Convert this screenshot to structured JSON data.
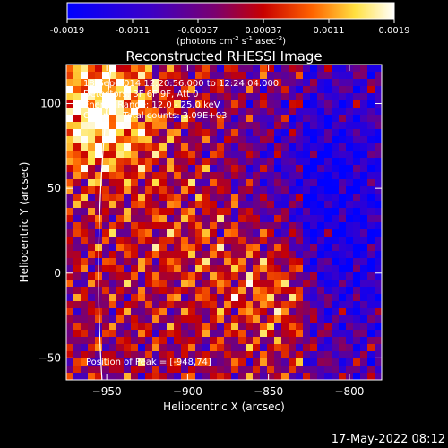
{
  "colorbar": {
    "ticks": [
      "-0.0019",
      "-0.0011",
      "-0.00037",
      "0.00037",
      "0.0011",
      "0.0019"
    ],
    "unit_parts": [
      "(photons cm",
      "-2",
      " s",
      "-1",
      " asec",
      "-2",
      ")"
    ],
    "colormap": "blue-purple-red-yellow-white"
  },
  "chart_data": {
    "type": "heatmap",
    "title": "Reconstructed RHESSI Image",
    "xlabel": "Heliocentric X (arcsec)",
    "ylabel": "Heliocentric Y (arcsec)",
    "xlim": [
      -975,
      -780
    ],
    "ylim": [
      -63,
      123
    ],
    "x_ticks": [
      -950,
      -900,
      -850,
      -800
    ],
    "y_ticks": [
      -50,
      0,
      50,
      100
    ],
    "x_tick_labels": [
      "−950",
      "−900",
      "−850",
      "−800"
    ],
    "y_tick_labels": [
      "−50",
      "0",
      "50",
      "100"
    ],
    "annotations": [
      "18-Sep-2014 12:20:56.000 to 12:24:04.000",
      "Detectors: 3F 6F 9F, Att 0",
      "Energy Range: 12.0 - 25.0 keV",
      "Clean     Total counts: 3.09E+03"
    ],
    "peak_label": "Position of Peak = [-948,74]",
    "peak_position": [
      -948,
      74
    ],
    "limb_color": "#ffffff"
  },
  "footer": {
    "timestamp": "17-May-2022 08:12"
  }
}
